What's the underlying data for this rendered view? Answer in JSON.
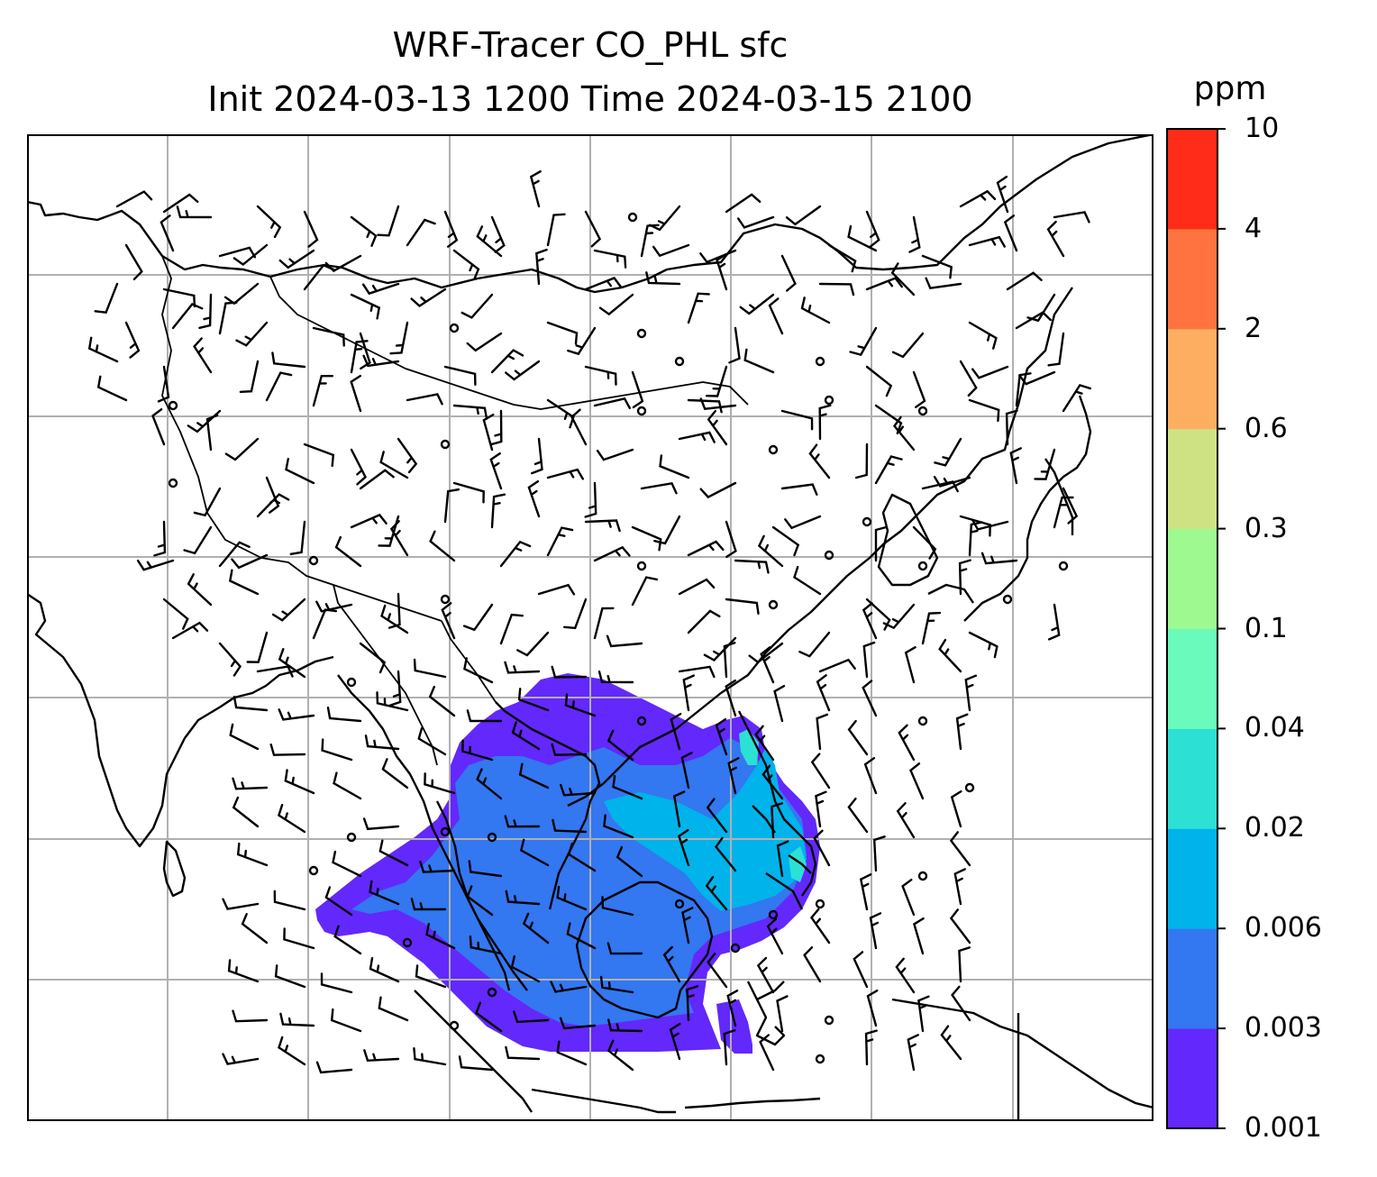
{
  "title": "WRF-Tracer CO_PHL sfc",
  "subtitle": "Init 2024-03-13 1200 Time 2024-03-15 2100",
  "colorbar": {
    "unit": "ppm",
    "levels": [
      "0.001",
      "0.003",
      "0.006",
      "0.02",
      "0.04",
      "0.1",
      "0.3",
      "0.6",
      "2",
      "4",
      "10"
    ],
    "colors": [
      "#6328fb",
      "#3377f1",
      "#01b3eb",
      "#2de0d4",
      "#6afabb",
      "#9efa90",
      "#cfe283",
      "#fdae61",
      "#ff7340",
      "#fe2c18"
    ]
  },
  "map": {
    "projection": "cylindrical",
    "gridlines": true,
    "features": [
      "coastlines",
      "country-borders",
      "wind-barbs",
      "tracer-concentration"
    ]
  }
}
